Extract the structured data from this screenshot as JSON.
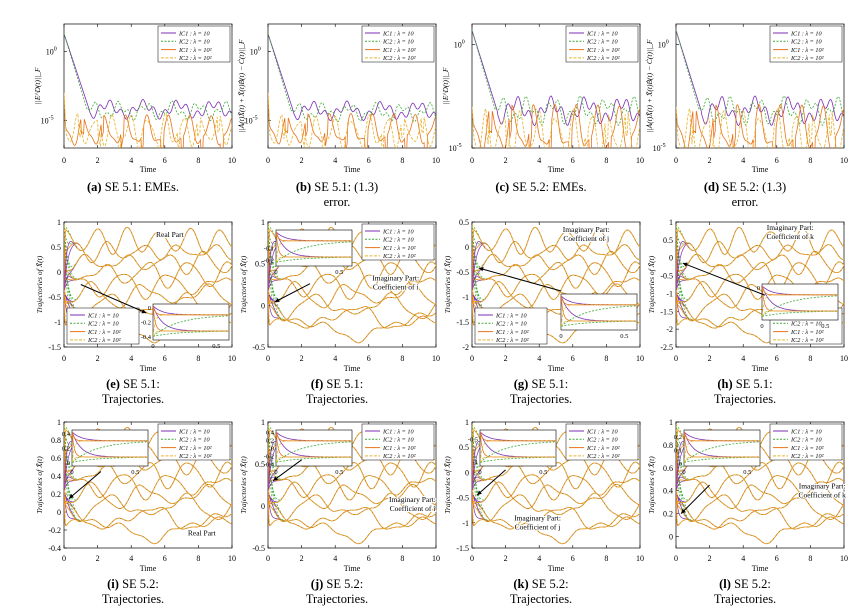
{
  "colors": {
    "ic1_l10": "#7b2fb5",
    "ic2_l10": "#3aa832",
    "ic1_l100": "#e8731c",
    "ic2_l100": "#e8b32a"
  },
  "legend_labels": [
    "IC1 : λ = 10",
    "IC2 : λ = 10",
    "IC1 : λ = 10²",
    "IC2 : λ = 10²"
  ],
  "common": {
    "time_label": "Time",
    "time_ticks": [
      "0",
      "2",
      "4",
      "6",
      "8",
      "10"
    ],
    "traj_label": "Trajectories of X̃(t)",
    "inset_ticks": [
      "0",
      "0.5"
    ]
  },
  "chart_data": [
    {
      "id": "a",
      "type": "line",
      "ylabel": "||E^D(t)||_F",
      "yscale": "log",
      "ytick_labels": [
        "10^0",
        "10^-5"
      ],
      "ytick_values": [
        0,
        -5
      ],
      "ylim_log10": [
        -7,
        2
      ],
      "xlim": [
        0,
        10
      ],
      "series": [
        {
          "name": "IC1 : λ = 10",
          "start_log10": 1.3,
          "converge_time": 1.5,
          "floor_log10": -4.2
        },
        {
          "name": "IC2 : λ = 10",
          "start_log10": 1.3,
          "converge_time": 1.4,
          "floor_log10": -4.3
        },
        {
          "name": "IC1 : λ = 10²",
          "start_log10": -3,
          "converge_time": 0.1,
          "floor_log10": -5.8
        },
        {
          "name": "IC2 : λ = 10²",
          "start_log10": -3,
          "converge_time": 0.1,
          "floor_log10": -5.7
        }
      ],
      "caption_label": "(a)",
      "caption_text": "SE 5.1: EMEs.",
      "caption_text2": ""
    },
    {
      "id": "b",
      "type": "line",
      "ylabel": "||Ȧ(t)X̃(t) + X̃(t)Ḃ(t) − Ċ(t)||_F",
      "yscale": "log",
      "ytick_labels": [
        "10^0",
        "10^-5"
      ],
      "ytick_values": [
        0,
        -5
      ],
      "ylim_log10": [
        -7,
        2
      ],
      "xlim": [
        0,
        10
      ],
      "series": [
        {
          "name": "IC1 : λ = 10",
          "start_log10": 1.3,
          "converge_time": 1.5,
          "floor_log10": -4.3
        },
        {
          "name": "IC2 : λ = 10",
          "start_log10": 1.3,
          "converge_time": 1.4,
          "floor_log10": -4.4
        },
        {
          "name": "IC1 : λ = 10²",
          "start_log10": -3,
          "converge_time": 0.1,
          "floor_log10": -5.7
        },
        {
          "name": "IC2 : λ = 10²",
          "start_log10": -3,
          "converge_time": 0.1,
          "floor_log10": -5.8
        }
      ],
      "caption_label": "(b)",
      "caption_text": "SE 5.1: (1.3)",
      "caption_text2": "error."
    },
    {
      "id": "c",
      "type": "line",
      "ylabel": "||E^D(t)||_F",
      "yscale": "log",
      "ytick_labels": [
        "10^0",
        "10^-5"
      ],
      "ytick_values": [
        0,
        -5
      ],
      "ylim_log10": [
        -5,
        1
      ],
      "xlim": [
        0,
        10
      ],
      "series": [
        {
          "name": "IC1 : λ = 10",
          "start_log10": 0.7,
          "converge_time": 1.5,
          "floor_log10": -3.2
        },
        {
          "name": "IC2 : λ = 10",
          "start_log10": 0.7,
          "converge_time": 1.4,
          "floor_log10": -3.2
        },
        {
          "name": "IC1 : λ = 10²",
          "start_log10": -3,
          "converge_time": 0.1,
          "floor_log10": -4.1
        },
        {
          "name": "IC2 : λ = 10²",
          "start_log10": -3,
          "converge_time": 0.1,
          "floor_log10": -4.3
        }
      ],
      "caption_label": "(c)",
      "caption_text": "SE 5.2: EMEs.",
      "caption_text2": ""
    },
    {
      "id": "d",
      "type": "line",
      "ylabel": "||Ȧ(t)X̃(t) + X̃(t)Ḃ(t) − Ċ(t)||_F",
      "yscale": "log",
      "ytick_labels": [
        "10^0",
        "10^-5"
      ],
      "ytick_values": [
        0,
        -5
      ],
      "ylim_log10": [
        -5,
        1
      ],
      "xlim": [
        0,
        10
      ],
      "series": [
        {
          "name": "IC1 : λ = 10",
          "start_log10": 0.7,
          "converge_time": 1.5,
          "floor_log10": -3.2
        },
        {
          "name": "IC2 : λ = 10",
          "start_log10": 0.7,
          "converge_time": 1.4,
          "floor_log10": -3.2
        },
        {
          "name": "IC1 : λ = 10²",
          "start_log10": -3,
          "converge_time": 0.1,
          "floor_log10": -4.1
        },
        {
          "name": "IC2 : λ = 10²",
          "start_log10": -3,
          "converge_time": 0.1,
          "floor_log10": -4.3
        }
      ],
      "caption_label": "(d)",
      "caption_text": "SE 5.2: (1.3)",
      "caption_text2": "error."
    },
    {
      "id": "e",
      "type": "line",
      "ylabel": "Trajectories of X̃(t)",
      "ylim": [
        -1.5,
        1
      ],
      "yticks": [
        "1",
        "0.5",
        "0",
        "-0.5",
        "-1",
        "-1.5"
      ],
      "ytick_values": [
        1,
        0.5,
        0,
        -0.5,
        -1,
        -1.5
      ],
      "xlim": [
        0,
        10
      ],
      "annotation": [
        "Real Part"
      ],
      "ann_pos": [
        6.3,
        0.7
      ],
      "arrow_from": [
        1.0,
        -0.25
      ],
      "arrow_to": [
        4.9,
        -0.82
      ],
      "inset": {
        "yticks": [
          "0",
          "-0.2",
          "-0.4"
        ],
        "ytick_values": [
          0,
          -0.2,
          -0.4
        ],
        "ylim": [
          -0.45,
          0.05
        ],
        "xlim": [
          0,
          0.6
        ]
      },
      "legend_place": "bottom-left",
      "caption_label": "(e)",
      "caption_text": "SE 5.1:",
      "caption_text2": "Trajectories."
    },
    {
      "id": "f",
      "type": "line",
      "ylabel": "Trajectories of X̃(t)",
      "ylim": [
        -0.5,
        1
      ],
      "yticks": [
        "1",
        "0.5",
        "0",
        "-0.5"
      ],
      "ytick_values": [
        1,
        0.5,
        0,
        -0.5
      ],
      "xlim": [
        0,
        10
      ],
      "annotation": [
        "Imaginary Part:",
        "Coefficient of i"
      ],
      "ann_pos": [
        7.6,
        0.3
      ],
      "arrow_from": [
        2.5,
        0.26
      ],
      "arrow_to": [
        0.4,
        0.04
      ],
      "inset": {
        "yticks": [
          "-0.1",
          "-0.2"
        ],
        "ytick_values": [
          -0.1,
          -0.2
        ],
        "ylim": [
          -0.25,
          0.05
        ],
        "xlim": [
          0,
          0.6
        ]
      },
      "legend_place": "top-right",
      "caption_label": "(f)",
      "caption_text": "SE 5.1:",
      "caption_text2": "Trajectories."
    },
    {
      "id": "g",
      "type": "line",
      "ylabel": "Trajectories of X̃(t)",
      "ylim": [
        -2,
        0.5
      ],
      "yticks": [
        "0.5",
        "0",
        "-0.5",
        "-1",
        "-1.5",
        "-2"
      ],
      "ytick_values": [
        0.5,
        0,
        -0.5,
        -1,
        -1.5,
        -2
      ],
      "xlim": [
        0,
        10
      ],
      "annotation": [
        "Imaginary Part:",
        "Coefficient of j"
      ],
      "ann_pos": [
        6.8,
        0.3
      ],
      "arrow_from": [
        5.3,
        -0.88
      ],
      "arrow_to": [
        0.4,
        -0.42
      ],
      "inset": {
        "yticks": [],
        "ytick_values": [],
        "ylim": [
          -0.45,
          0.05
        ],
        "xlim": [
          0,
          0.6
        ]
      },
      "legend_place": "bottom-left",
      "caption_label": "(g)",
      "caption_text": "SE 5.1:",
      "caption_text2": "Trajectories."
    },
    {
      "id": "h",
      "type": "line",
      "ylabel": "Trajectories of X̃(t)",
      "ylim": [
        -2.5,
        1
      ],
      "yticks": [
        "1",
        "0.5",
        "0",
        "-0.5",
        "-1",
        "-1.5",
        "-2",
        "-2.5"
      ],
      "ytick_values": [
        1,
        0.5,
        0,
        -0.5,
        -1,
        -1.5,
        -2,
        -2.5
      ],
      "xlim": [
        0,
        10
      ],
      "annotation": [
        "Imaginary Part:",
        "Coefficient of k"
      ],
      "ann_pos": [
        6.8,
        0.78
      ],
      "arrow_from": [
        5.3,
        -1.05
      ],
      "arrow_to": [
        0.4,
        -0.15
      ],
      "inset": {
        "yticks": [
          "0"
        ],
        "ytick_values": [
          0
        ],
        "ylim": [
          -0.45,
          0.05
        ],
        "xlim": [
          0,
          0.6
        ]
      },
      "legend_place": "bottom-right",
      "caption_label": "(h)",
      "caption_text": "SE 5.1:",
      "caption_text2": "Trajectories."
    },
    {
      "id": "i",
      "type": "line",
      "ylabel": "Trajectories of X̃(t)",
      "ylim": [
        -0.4,
        1
      ],
      "yticks": [
        "1",
        "0.8",
        "0.6",
        "0.4",
        "0.2",
        "0",
        "-0.2",
        "-0.4"
      ],
      "ytick_values": [
        1,
        0.8,
        0.6,
        0.4,
        0.2,
        0,
        -0.2,
        -0.4
      ],
      "xlim": [
        0,
        10
      ],
      "annotation": [
        "Real Part"
      ],
      "ann_pos": [
        8.2,
        -0.26
      ],
      "arrow_from": [
        2.2,
        0.45
      ],
      "arrow_to": [
        0.3,
        0.15
      ],
      "inset": {
        "yticks": [
          "0.4",
          "0.2",
          "0"
        ],
        "ytick_values": [
          0.4,
          0.2,
          0
        ],
        "ylim": [
          -0.05,
          0.45
        ],
        "xlim": [
          0,
          0.6
        ]
      },
      "legend_place": "top-right",
      "caption_label": "(i)",
      "caption_text": "SE 5.2:",
      "caption_text2": "Trajectories."
    },
    {
      "id": "j",
      "type": "line",
      "ylabel": "Trajectories of X̃(t)",
      "ylim": [
        -0.5,
        1
      ],
      "yticks": [
        "1",
        "0.5",
        "0",
        "-0.5"
      ],
      "ytick_values": [
        1,
        0.5,
        0,
        -0.5
      ],
      "xlim": [
        0,
        10
      ],
      "annotation": [
        "Imaginary Part:",
        "Coefficient of i"
      ],
      "ann_pos": [
        8.6,
        0.05
      ],
      "arrow_from": [
        2.0,
        0.55
      ],
      "arrow_to": [
        0.3,
        0.3
      ],
      "inset": {
        "yticks": [
          "0.4",
          "0.2",
          "0",
          "-0.2",
          "-0.4"
        ],
        "ytick_values": [
          0.4,
          0.2,
          0,
          -0.2,
          -0.4
        ],
        "ylim": [
          -0.45,
          0.45
        ],
        "xlim": [
          0,
          0.6
        ]
      },
      "legend_place": "top-right",
      "caption_label": "(j)",
      "caption_text": "SE 5.2:",
      "caption_text2": "Trajectories."
    },
    {
      "id": "k",
      "type": "line",
      "ylabel": "Trajectories of X̃(t)",
      "ylim": [
        -1.5,
        1
      ],
      "yticks": [
        "1",
        "0.5",
        "0",
        "-0.5",
        "-1",
        "-1.5"
      ],
      "ytick_values": [
        1,
        0.5,
        0,
        -0.5,
        -1,
        -1.5
      ],
      "xlim": [
        0,
        10
      ],
      "annotation": [
        "Imaginary Part:",
        "Coefficient of j"
      ],
      "ann_pos": [
        3.9,
        -0.95
      ],
      "arrow_from": [
        2.0,
        0.05
      ],
      "arrow_to": [
        0.3,
        -0.45
      ],
      "inset": {
        "yticks": [
          "-0.5",
          "-1"
        ],
        "ytick_values": [
          -0.5,
          -1
        ],
        "ylim": [
          -1.1,
          -0.3
        ],
        "xlim": [
          0,
          0.6
        ]
      },
      "legend_place": "top-right",
      "caption_label": "(k)",
      "caption_text": "SE 5.2:",
      "caption_text2": "Trajectories."
    },
    {
      "id": "l",
      "type": "line",
      "ylabel": "Trajectories of X̃(t)",
      "ylim": [
        -0.1,
        1
      ],
      "yticks": [
        "1",
        "0.8",
        "0.6",
        "0.4",
        "0.2",
        "0"
      ],
      "ytick_values": [
        1,
        0.8,
        0.6,
        0.4,
        0.2,
        0
      ],
      "xlim": [
        0,
        10
      ],
      "annotation": [
        "Imaginary Part:",
        "Coefficient of k"
      ],
      "ann_pos": [
        8.7,
        0.42
      ],
      "arrow_from": [
        2.0,
        0.45
      ],
      "arrow_to": [
        0.3,
        0.2
      ],
      "inset": {
        "yticks": [
          "0.2",
          "0.1",
          "0"
        ],
        "ytick_values": [
          0.2,
          0.1,
          0
        ],
        "ylim": [
          -0.02,
          0.25
        ],
        "xlim": [
          0,
          0.6
        ]
      },
      "legend_place": "top-right",
      "caption_label": "(l)",
      "caption_text": "SE 5.2:",
      "caption_text2": "Trajectories."
    }
  ]
}
